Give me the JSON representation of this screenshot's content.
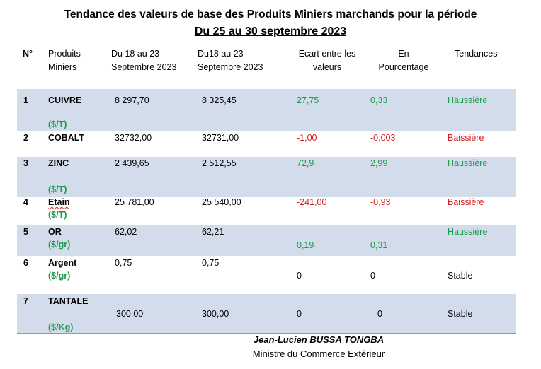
{
  "title": {
    "line1": "Tendance des valeurs de base des Produits Miniers marchands pour la période",
    "line2": "Du 25 au 30 septembre 2023"
  },
  "headers": {
    "num": "N°",
    "product": [
      "Produits",
      "Miniers"
    ],
    "period1": [
      "Du 18  au 23",
      "Septembre 2023"
    ],
    "period2": [
      "Du18 au 23",
      "Septembre 2023"
    ],
    "diff": [
      "Ecart entre les",
      "valeurs"
    ],
    "pct": [
      "En",
      "Pourcentage"
    ],
    "trend": "Tendances"
  },
  "rows": [
    {
      "num": "1",
      "product": "CUIVRE",
      "unit": "($/T)",
      "v1": "8 297,70",
      "v2": "8 325,45",
      "diff": "27,75",
      "pct": "0,33",
      "trend": "Haussière",
      "color": "#1a9a4a"
    },
    {
      "num": "2",
      "product": "COBALT",
      "unit": "",
      "v1": "32732,00",
      "v2": "32731,00",
      "diff": "-1,00",
      "pct": "-0,003",
      "trend": "Baissière",
      "color": "#d21f1f"
    },
    {
      "num": "3",
      "product": "ZINC",
      "unit": "($/T)",
      "v1": "2 439,65",
      "v2": "2 512,55",
      "diff": "72,9",
      "pct": "2,99",
      "trend": "Haussière",
      "color": "#1a9a4a"
    },
    {
      "num": "4",
      "product": "Etain",
      "unit": "($/T)",
      "v1": "25 781,00",
      "v2": "25 540,00",
      "diff": "-241,00",
      "pct": "-0,93",
      "trend": "Baissière",
      "color": "#d21f1f"
    },
    {
      "num": "5",
      "product": "OR",
      "unit": "($/gr)",
      "v1": "62,02",
      "v2": "62,21",
      "diff": "0,19",
      "pct": "0,31",
      "trend": "Haussière",
      "color": "#1a9a4a"
    },
    {
      "num": "6",
      "product": "Argent",
      "unit": "($/gr)",
      "v1": "0,75",
      "v2": "0,75",
      "diff": "0",
      "pct": "0",
      "trend": "Stable",
      "color": "#000000"
    },
    {
      "num": "7",
      "product": "TANTALE",
      "unit": "($/Kg)",
      "v1": "300,00",
      "v2": "300,00",
      "diff": "0",
      "pct": "0",
      "trend": "Stable",
      "color": "#000000"
    }
  ],
  "signature": {
    "name": "Jean-Lucien BUSSA TONGBA",
    "role": "Ministre du Commerce Extérieur"
  }
}
